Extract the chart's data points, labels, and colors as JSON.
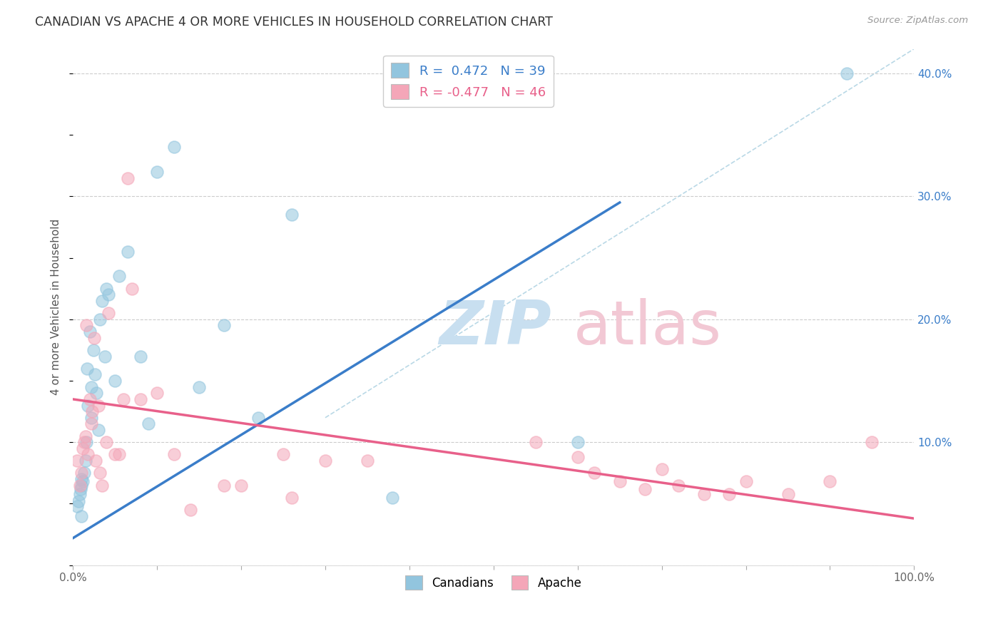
{
  "title": "CANADIAN VS APACHE 4 OR MORE VEHICLES IN HOUSEHOLD CORRELATION CHART",
  "source": "Source: ZipAtlas.com",
  "ylabel": "4 or more Vehicles in Household",
  "xlim": [
    0.0,
    1.0
  ],
  "ylim": [
    0.0,
    0.42
  ],
  "x_ticks": [
    0.0,
    0.1,
    0.2,
    0.3,
    0.4,
    0.5,
    0.6,
    0.7,
    0.8,
    0.9,
    1.0
  ],
  "x_tick_labels": [
    "0.0%",
    "",
    "",
    "",
    "",
    "",
    "",
    "",
    "",
    "",
    "100.0%"
  ],
  "y_ticks": [
    0.0,
    0.1,
    0.2,
    0.3,
    0.4
  ],
  "y_tick_labels_right": [
    "",
    "10.0%",
    "20.0%",
    "30.0%",
    "40.0%"
  ],
  "blue_color": "#92c5de",
  "pink_color": "#f4a6b8",
  "blue_line_color": "#3a7dc9",
  "pink_line_color": "#e8608a",
  "dashed_line_color": "#a8cfe0",
  "canadians_x": [
    0.005,
    0.007,
    0.008,
    0.009,
    0.01,
    0.01,
    0.01,
    0.012,
    0.013,
    0.015,
    0.016,
    0.017,
    0.018,
    0.02,
    0.022,
    0.022,
    0.024,
    0.026,
    0.028,
    0.03,
    0.032,
    0.035,
    0.038,
    0.04,
    0.042,
    0.05,
    0.055,
    0.065,
    0.08,
    0.09,
    0.1,
    0.12,
    0.15,
    0.18,
    0.22,
    0.26,
    0.38,
    0.6,
    0.92
  ],
  "canadians_y": [
    0.048,
    0.052,
    0.058,
    0.062,
    0.065,
    0.07,
    0.04,
    0.068,
    0.075,
    0.085,
    0.1,
    0.16,
    0.13,
    0.19,
    0.12,
    0.145,
    0.175,
    0.155,
    0.14,
    0.11,
    0.2,
    0.215,
    0.17,
    0.225,
    0.22,
    0.15,
    0.235,
    0.255,
    0.17,
    0.115,
    0.32,
    0.34,
    0.145,
    0.195,
    0.12,
    0.285,
    0.055,
    0.1,
    0.4
  ],
  "apache_x": [
    0.005,
    0.008,
    0.01,
    0.012,
    0.013,
    0.015,
    0.016,
    0.018,
    0.02,
    0.022,
    0.023,
    0.025,
    0.027,
    0.03,
    0.032,
    0.035,
    0.04,
    0.042,
    0.05,
    0.055,
    0.06,
    0.065,
    0.07,
    0.08,
    0.1,
    0.12,
    0.14,
    0.18,
    0.2,
    0.25,
    0.26,
    0.3,
    0.35,
    0.55,
    0.6,
    0.62,
    0.65,
    0.68,
    0.7,
    0.72,
    0.75,
    0.78,
    0.8,
    0.85,
    0.9,
    0.95
  ],
  "apache_y": [
    0.085,
    0.065,
    0.075,
    0.095,
    0.1,
    0.105,
    0.195,
    0.09,
    0.135,
    0.115,
    0.125,
    0.185,
    0.085,
    0.13,
    0.075,
    0.065,
    0.1,
    0.205,
    0.09,
    0.09,
    0.135,
    0.315,
    0.225,
    0.135,
    0.14,
    0.09,
    0.045,
    0.065,
    0.065,
    0.09,
    0.055,
    0.085,
    0.085,
    0.1,
    0.088,
    0.075,
    0.068,
    0.062,
    0.078,
    0.065,
    0.058,
    0.058,
    0.068,
    0.058,
    0.068,
    0.1
  ],
  "canadian_trendline_x": [
    0.0,
    0.65
  ],
  "canadian_trendline_y": [
    0.022,
    0.295
  ],
  "apache_trendline_x": [
    0.0,
    1.0
  ],
  "apache_trendline_y": [
    0.135,
    0.038
  ],
  "dashed_line_x": [
    0.3,
    1.0
  ],
  "dashed_line_y": [
    0.12,
    0.42
  ]
}
